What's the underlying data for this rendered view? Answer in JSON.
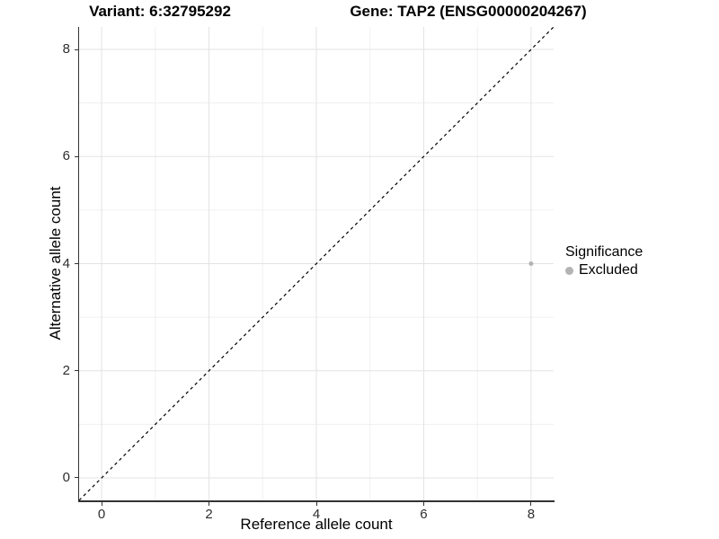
{
  "chart_data": {
    "type": "scatter",
    "titles": {
      "left": "Variant: 6:32795292",
      "right": "Gene: TAP2 (ENSG00000204267)"
    },
    "xlabel": "Reference allele count",
    "ylabel": "Alternative allele count",
    "xlim": [
      -0.42,
      8.42
    ],
    "ylim": [
      -0.42,
      8.42
    ],
    "xticks": [
      0,
      2,
      4,
      6,
      8
    ],
    "yticks": [
      0,
      2,
      4,
      6,
      8
    ],
    "minor_xticks": [
      1,
      3,
      5,
      7
    ],
    "minor_yticks": [
      1,
      3,
      5,
      7
    ],
    "grid": "major+minor",
    "points": [
      {
        "x": 8,
        "y": 4,
        "series": "Excluded"
      }
    ],
    "reference_line": {
      "slope": 1,
      "intercept": 0,
      "style": "dashed",
      "color": "#000000"
    },
    "legend": {
      "position": "right",
      "title": "Significance",
      "items": [
        {
          "label": "Excluded",
          "color": "#b3b3b3"
        }
      ]
    },
    "colors": {
      "point": "#b3b3b3",
      "grid_major": "#e3e3e3",
      "grid_minor": "#f0f0f0",
      "axis_line": "#333333",
      "text": "#000000"
    }
  }
}
